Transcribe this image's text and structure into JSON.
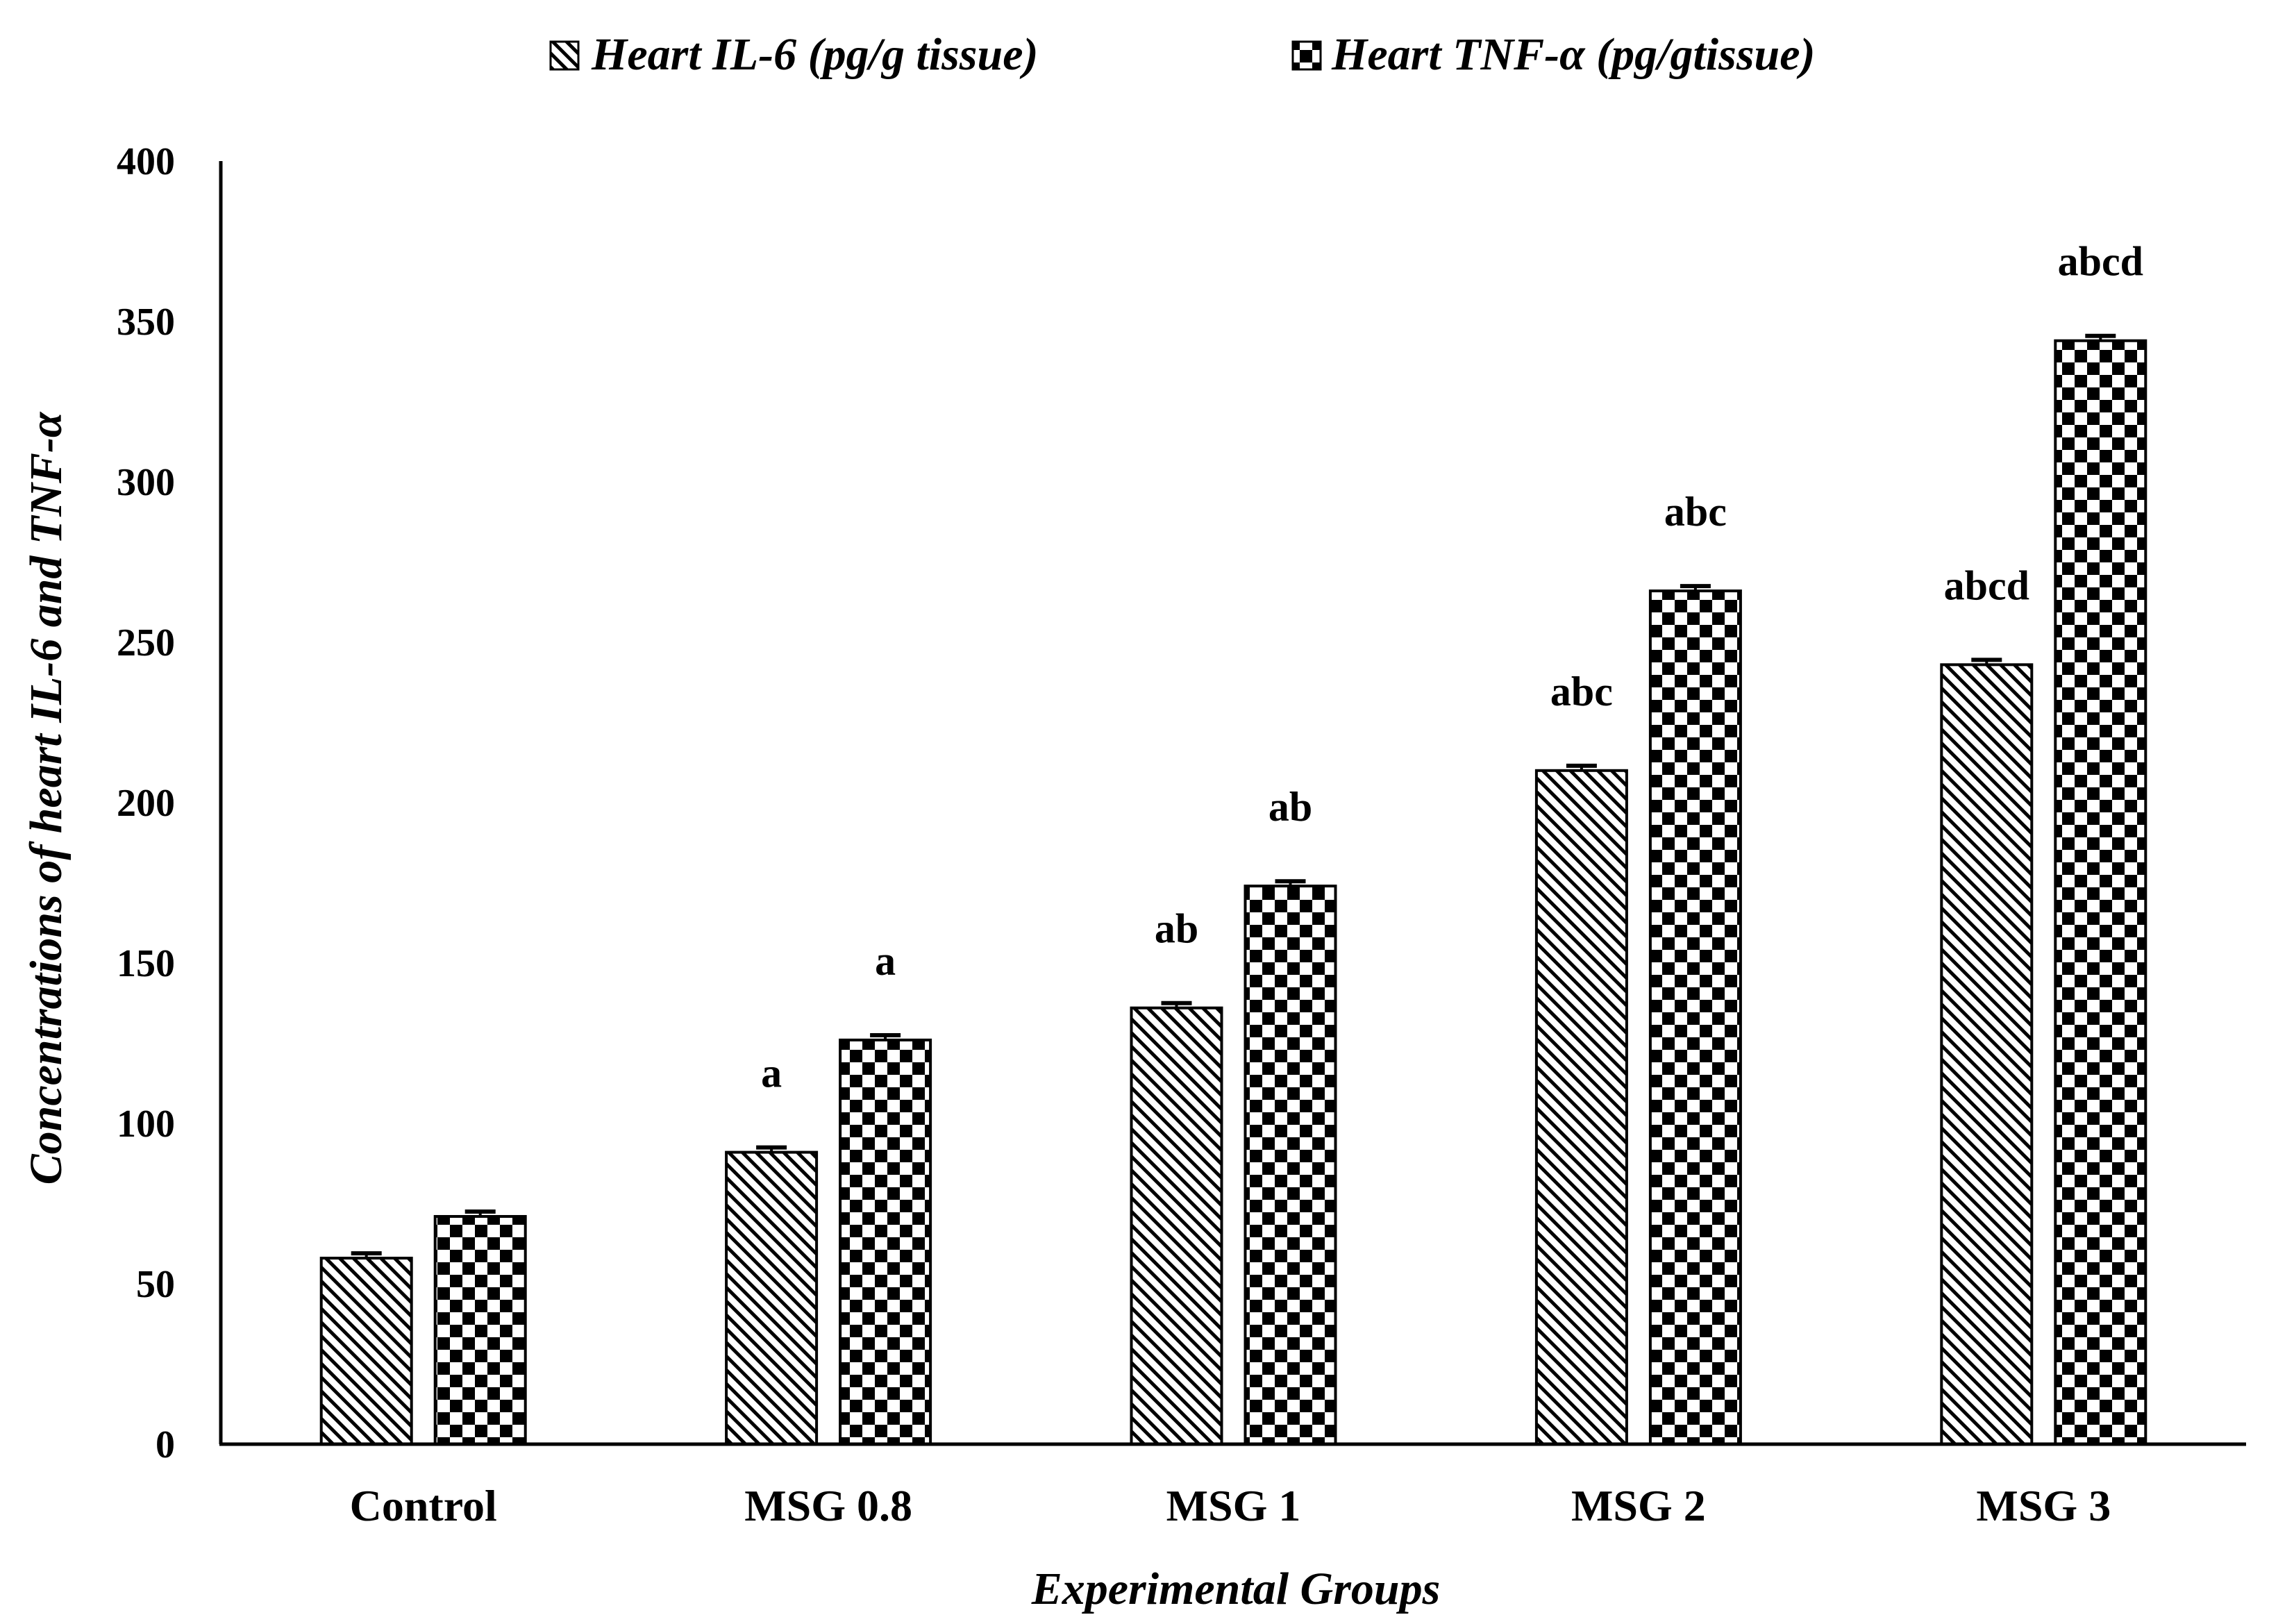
{
  "chart_data": {
    "type": "bar",
    "categories": [
      "Control",
      "MSG 0.8",
      "MSG 1",
      "MSG 2",
      "MSG 3"
    ],
    "series": [
      {
        "name": "Heart IL-6 (pg/g tissue)",
        "pattern": "diagonal-hatch",
        "values": [
          58,
          91,
          136,
          210,
          243
        ],
        "errors": [
          1.5,
          1.5,
          1.5,
          1.5,
          1.5
        ],
        "labels": [
          "",
          "a",
          "ab",
          "abc",
          "abcd"
        ]
      },
      {
        "name": "Heart TNF-α (pg/gtissue)",
        "pattern": "checkerboard",
        "values": [
          71,
          126,
          174,
          266,
          344
        ],
        "errors": [
          1.5,
          1.5,
          1.5,
          1.5,
          1.5
        ],
        "labels": [
          "",
          "a",
          "ab",
          "abc",
          "abcd"
        ]
      }
    ],
    "xlabel": "Experimental Groups",
    "ylabel": "Concentrations of heart IL-6 and TNF-α",
    "ylim": [
      0,
      400
    ],
    "yticks": [
      0,
      50,
      100,
      150,
      200,
      250,
      300,
      350,
      400
    ],
    "grid": false,
    "legend_position": "top-center"
  },
  "colors": {
    "ink": "#000000",
    "background": "#ffffff"
  }
}
